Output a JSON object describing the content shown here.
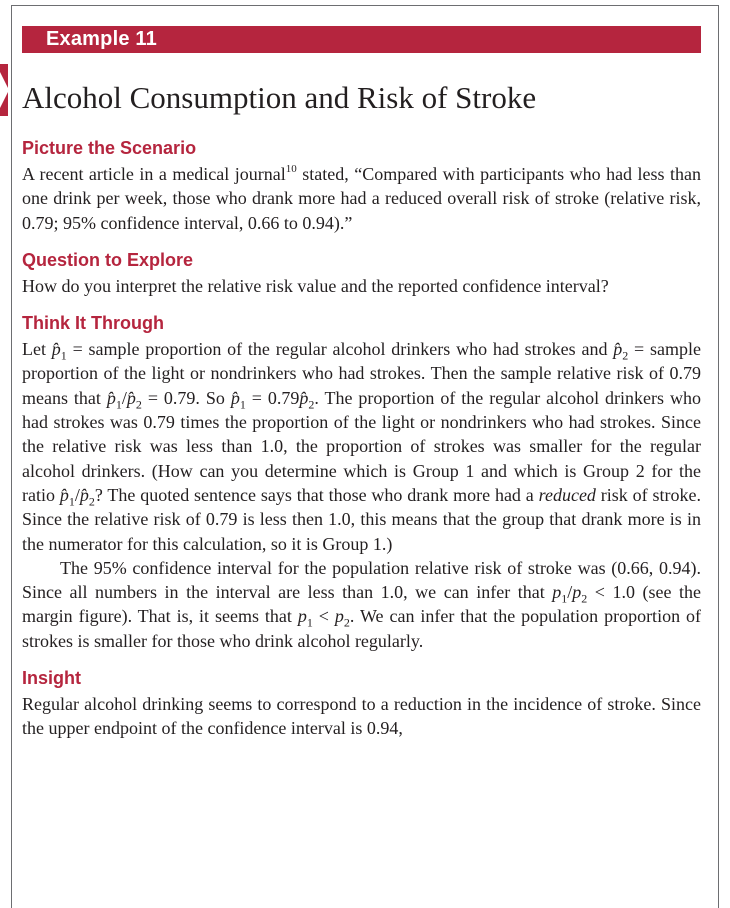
{
  "example": {
    "banner": "Example 11",
    "title": "Alcohol Consumption and Risk of Stroke"
  },
  "sections": {
    "scenario": {
      "heading": "Picture the Scenario",
      "text_a": "A recent article in a medical journal",
      "footnote": "10",
      "text_b": " stated, “Compared with participants who had less than one drink per week, those who drank more had a reduced overall risk of stroke (relative risk, 0.79; 95% confidence interval, 0.66 to 0.94).”"
    },
    "question": {
      "heading": "Question to Explore",
      "text": "How do you interpret the relative risk value and the reported confidence interval?"
    },
    "think": {
      "heading": "Think It Through",
      "p1": {
        "t1": "Let ",
        "t2": " = sample proportion of the regular alcohol drinkers who had strokes and ",
        "t3": " = sample proportion of the light or nondrinkers who had strokes. Then the sample relative risk of 0.79 means that ",
        "t4": " = 0.79. So ",
        "t5": " = 0.79",
        "t6": ". The proportion of the regular alcohol drinkers who had strokes was 0.79 times the proportion of the light or nondrinkers who had strokes. Since the relative risk was less than 1.0, the proportion of strokes was smaller for the regular alcohol drinkers. (How can you determine which is Group 1 and which is Group 2 for the ratio ",
        "t7": "? The quoted sentence says that those who drank more had a ",
        "t8": "reduced",
        "t9": " risk of stroke. Since the relative risk of 0.79 is less then 1.0, this means that the group that drank more is in the numerator for this calculation, so it is Group 1.)"
      },
      "p2": {
        "t1": "The 95% confidence interval for the population relative risk of stroke was (0.66, 0.94). Since all numbers in the interval are less than 1.0, we can infer that ",
        "t2": " < 1.0 (see the margin figure). That is, it seems that ",
        "t3": " < ",
        "t4": ". We can infer that the population proportion of strokes is smaller for those who drink alcohol regularly."
      }
    },
    "insight": {
      "heading": "Insight",
      "text": "Regular alcohol drinking seems to correspond to a reduction in the incidence of stroke. Since the upper endpoint of the confidence interval is 0.94,"
    }
  },
  "symbols": {
    "p_hat": "p̂",
    "p": "p",
    "slash": "/",
    "one": "1",
    "two": "2"
  },
  "colors": {
    "accent": "#b5253e",
    "text": "#231f20",
    "frame": "#6d6e71"
  }
}
